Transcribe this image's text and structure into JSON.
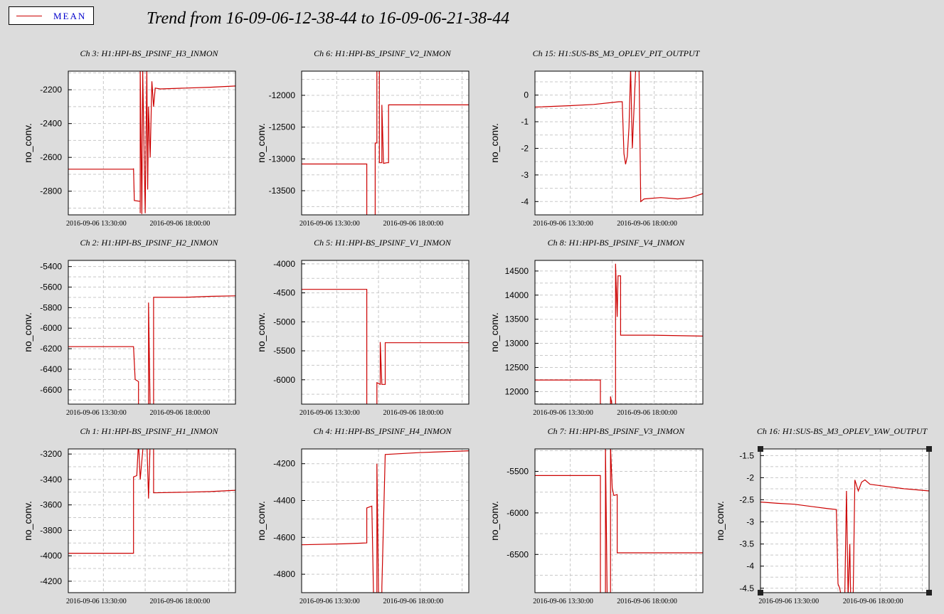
{
  "legend": {
    "label": "MEAN",
    "color": "#cc0000"
  },
  "title": "Trend from 16-09-06-12-38-44 to 16-09-06-21-38-44",
  "colors": {
    "line": "#cc0000",
    "grid": "#c8c8c8",
    "background": "#dcdcdc",
    "plot_bg": "#ffffff"
  },
  "chart_data": [
    {
      "type": "line",
      "title": "Ch 3: H1:HPI-BS_IPSINF_H3_INMON",
      "ylabel": "no_conv.",
      "x_ticks": [
        "2016-09-06 13:30:00",
        "2016-09-06 18:00:00"
      ],
      "yticks": [
        -2200,
        -2400,
        -2600,
        -2800
      ],
      "ylim": [
        -2940,
        -2090
      ],
      "series": [
        {
          "points": [
            [
              0,
              -2670
            ],
            [
              0.39,
              -2670
            ],
            [
              0.39,
              -2665
            ],
            [
              0.395,
              -2855
            ],
            [
              0.43,
              -2860
            ],
            [
              0.43,
              -2930
            ],
            [
              0.43,
              -2090
            ],
            [
              0.44,
              -2935
            ],
            [
              0.445,
              -2090
            ],
            [
              0.46,
              -2930
            ],
            [
              0.47,
              -2080
            ],
            [
              0.475,
              -2790
            ],
            [
              0.48,
              -2300
            ],
            [
              0.49,
              -2600
            ],
            [
              0.5,
              -2150
            ],
            [
              0.51,
              -2300
            ],
            [
              0.52,
              -2190
            ],
            [
              0.55,
              -2195
            ],
            [
              0.7,
              -2190
            ],
            [
              0.85,
              -2185
            ],
            [
              1,
              -2178
            ]
          ]
        }
      ]
    },
    {
      "type": "line",
      "title": "Ch 6: H1:HPI-BS_IPSINF_V2_INMON",
      "ylabel": "no_conv.",
      "x_ticks": [
        "2016-09-06 13:30:00",
        "2016-09-06 18:00:00"
      ],
      "yticks": [
        -12000,
        -12500,
        -13000,
        -13500
      ],
      "ylim": [
        -13880,
        -11620
      ],
      "series": [
        {
          "points": [
            [
              0,
              -13080
            ],
            [
              0.39,
              -13080
            ],
            [
              0.39,
              -13900
            ],
            [
              0.44,
              -13900
            ],
            [
              0.44,
              -12750
            ],
            [
              0.45,
              -12750
            ],
            [
              0.45,
              -11600
            ],
            [
              0.465,
              -11600
            ],
            [
              0.465,
              -13060
            ],
            [
              0.48,
              -13060
            ],
            [
              0.48,
              -12150
            ],
            [
              0.49,
              -13070
            ],
            [
              0.51,
              -13060
            ],
            [
              0.52,
              -13060
            ],
            [
              0.52,
              -12150
            ],
            [
              1,
              -12150
            ]
          ]
        }
      ]
    },
    {
      "type": "line",
      "title": "Ch 15: H1:SUS-BS_M3_OPLEV_PIT_OUTPUT",
      "ylabel": "no_conv.",
      "x_ticks": [
        "2016-09-06 13:30:00",
        "2016-09-06 18:00:00"
      ],
      "yticks": [
        0,
        -1,
        -2,
        -3,
        -4
      ],
      "ylim": [
        -4.5,
        0.9
      ],
      "series": [
        {
          "points": [
            [
              0,
              -0.45
            ],
            [
              0.2,
              -0.4
            ],
            [
              0.35,
              -0.35
            ],
            [
              0.5,
              -0.25
            ],
            [
              0.52,
              -0.25
            ],
            [
              0.53,
              -2.2
            ],
            [
              0.54,
              -2.6
            ],
            [
              0.55,
              -2.3
            ],
            [
              0.56,
              -1.2
            ],
            [
              0.57,
              1.0
            ],
            [
              0.58,
              -2.0
            ],
            [
              0.6,
              1.0
            ],
            [
              0.62,
              1.0
            ],
            [
              0.63,
              -4.0
            ],
            [
              0.65,
              -3.9
            ],
            [
              0.75,
              -3.85
            ],
            [
              0.85,
              -3.9
            ],
            [
              0.93,
              -3.85
            ],
            [
              1,
              -3.7
            ]
          ]
        }
      ]
    },
    {
      "type": "line",
      "title": "Ch 2: H1:HPI-BS_IPSINF_H2_INMON",
      "ylabel": "no_conv.",
      "x_ticks": [
        "2016-09-06 13:30:00",
        "2016-09-06 18:00:00"
      ],
      "yticks": [
        -5400,
        -5600,
        -5800,
        -6000,
        -6200,
        -6400,
        -6600
      ],
      "ylim": [
        -6740,
        -5340
      ],
      "series": [
        {
          "points": [
            [
              0,
              -6180
            ],
            [
              0.39,
              -6180
            ],
            [
              0.4,
              -6500
            ],
            [
              0.42,
              -6520
            ],
            [
              0.42,
              -6800
            ],
            [
              0.48,
              -6800
            ],
            [
              0.48,
              -5750
            ],
            [
              0.49,
              -6800
            ],
            [
              0.51,
              -6800
            ],
            [
              0.51,
              -5700
            ],
            [
              0.7,
              -5700
            ],
            [
              0.85,
              -5690
            ],
            [
              1,
              -5685
            ]
          ]
        }
      ]
    },
    {
      "type": "line",
      "title": "Ch 5: H1:HPI-BS_IPSINF_V1_INMON",
      "ylabel": "no_conv.",
      "x_ticks": [
        "2016-09-06 13:30:00",
        "2016-09-06 18:00:00"
      ],
      "yticks": [
        -4000,
        -4500,
        -5000,
        -5500,
        -6000
      ],
      "ylim": [
        -6420,
        -3940
      ],
      "series": [
        {
          "points": [
            [
              0,
              -4440
            ],
            [
              0.39,
              -4440
            ],
            [
              0.39,
              -6500
            ],
            [
              0.45,
              -6500
            ],
            [
              0.45,
              -6050
            ],
            [
              0.47,
              -6080
            ],
            [
              0.47,
              -5350
            ],
            [
              0.48,
              -6080
            ],
            [
              0.5,
              -6080
            ],
            [
              0.5,
              -5360
            ],
            [
              0.7,
              -5360
            ],
            [
              1,
              -5360
            ]
          ]
        }
      ]
    },
    {
      "type": "line",
      "title": "Ch 8: H1:HPI-BS_IPSINF_V4_INMON",
      "ylabel": "no_conv.",
      "x_ticks": [
        "2016-09-06 13:30:00",
        "2016-09-06 18:00:00"
      ],
      "yticks": [
        14500,
        14000,
        13500,
        13000,
        12500,
        12000
      ],
      "ylim": [
        11740,
        14720
      ],
      "series": [
        {
          "points": [
            [
              0,
              12240
            ],
            [
              0.39,
              12240
            ],
            [
              0.39,
              11700
            ],
            [
              0.45,
              11700
            ],
            [
              0.45,
              11900
            ],
            [
              0.46,
              11700
            ],
            [
              0.48,
              11700
            ],
            [
              0.48,
              14650
            ],
            [
              0.49,
              13550
            ],
            [
              0.495,
              14400
            ],
            [
              0.51,
              14400
            ],
            [
              0.51,
              13170
            ],
            [
              0.7,
              13170
            ],
            [
              1,
              13150
            ]
          ]
        }
      ]
    },
    {
      "type": "line",
      "title": "Ch 1: H1:HPI-BS_IPSINF_H1_INMON",
      "ylabel": "no_conv.",
      "x_ticks": [
        "2016-09-06 13:30:00",
        "2016-09-06 18:00:00"
      ],
      "yticks": [
        -3200,
        -3400,
        -3600,
        -3800,
        -4000,
        -4200
      ],
      "ylim": [
        -4290,
        -3160
      ],
      "series": [
        {
          "points": [
            [
              0,
              -3980
            ],
            [
              0.39,
              -3980
            ],
            [
              0.39,
              -3380
            ],
            [
              0.41,
              -3370
            ],
            [
              0.42,
              -3100
            ],
            [
              0.43,
              -3400
            ],
            [
              0.45,
              -3100
            ],
            [
              0.47,
              -3100
            ],
            [
              0.48,
              -3550
            ],
            [
              0.49,
              -3100
            ],
            [
              0.51,
              -3100
            ],
            [
              0.51,
              -3505
            ],
            [
              0.7,
              -3500
            ],
            [
              0.85,
              -3495
            ],
            [
              1,
              -3485
            ]
          ]
        }
      ]
    },
    {
      "type": "line",
      "title": "Ch 4: H1:HPI-BS_IPSINF_H4_INMON",
      "ylabel": "no_conv.",
      "x_ticks": [
        "2016-09-06 13:30:00",
        "2016-09-06 18:00:00"
      ],
      "yticks": [
        -4200,
        -4400,
        -4600,
        -4800
      ],
      "ylim": [
        -4900,
        -4120
      ],
      "series": [
        {
          "points": [
            [
              0,
              -4640
            ],
            [
              0.25,
              -4635
            ],
            [
              0.39,
              -4630
            ],
            [
              0.39,
              -4440
            ],
            [
              0.42,
              -4430
            ],
            [
              0.43,
              -4900
            ],
            [
              0.45,
              -4900
            ],
            [
              0.45,
              -4200
            ],
            [
              0.46,
              -4900
            ],
            [
              0.48,
              -4900
            ],
            [
              0.48,
              -4870
            ],
            [
              0.5,
              -4150
            ],
            [
              0.7,
              -4140
            ],
            [
              0.85,
              -4135
            ],
            [
              1,
              -4130
            ]
          ]
        }
      ]
    },
    {
      "type": "line",
      "title": "Ch 7: H1:HPI-BS_IPSINF_V3_INMON",
      "ylabel": "no_conv.",
      "x_ticks": [
        "2016-09-06 13:30:00",
        "2016-09-06 18:00:00"
      ],
      "yticks": [
        -5500,
        -6000,
        -6500
      ],
      "ylim": [
        -6960,
        -5230
      ],
      "series": [
        {
          "points": [
            [
              0,
              -5550
            ],
            [
              0.39,
              -5550
            ],
            [
              0.39,
              -7000
            ],
            [
              0.42,
              -7000
            ],
            [
              0.42,
              -5200
            ],
            [
              0.43,
              -7000
            ],
            [
              0.45,
              -7000
            ],
            [
              0.45,
              -5200
            ],
            [
              0.46,
              -5700
            ],
            [
              0.47,
              -5790
            ],
            [
              0.49,
              -5780
            ],
            [
              0.49,
              -6480
            ],
            [
              0.7,
              -6480
            ],
            [
              1,
              -6480
            ]
          ]
        }
      ]
    },
    {
      "type": "line",
      "title": "Ch 16: H1:SUS-BS_M3_OPLEV_YAW_OUTPUT",
      "ylabel": "no_conv.",
      "x_ticks": [
        "2016-09-06 13:30:00",
        "2016-09-06 18:00:00"
      ],
      "yticks": [
        -1.5,
        -2,
        -2.5,
        -3,
        -3.5,
        -4,
        -4.5
      ],
      "ylim": [
        -4.6,
        -1.35
      ],
      "series": [
        {
          "points": [
            [
              0,
              -2.55
            ],
            [
              0.1,
              -2.58
            ],
            [
              0.2,
              -2.6
            ],
            [
              0.3,
              -2.65
            ],
            [
              0.4,
              -2.7
            ],
            [
              0.45,
              -2.72
            ],
            [
              0.46,
              -4.4
            ],
            [
              0.47,
              -4.5
            ],
            [
              0.48,
              -4.7
            ],
            [
              0.5,
              -4.7
            ],
            [
              0.51,
              -2.3
            ],
            [
              0.52,
              -4.7
            ],
            [
              0.53,
              -3.5
            ],
            [
              0.535,
              -4.7
            ],
            [
              0.55,
              -4.7
            ],
            [
              0.56,
              -2.05
            ],
            [
              0.58,
              -2.3
            ],
            [
              0.6,
              -2.1
            ],
            [
              0.62,
              -2.05
            ],
            [
              0.65,
              -2.15
            ],
            [
              0.75,
              -2.2
            ],
            [
              0.85,
              -2.25
            ],
            [
              1,
              -2.3
            ]
          ]
        }
      ]
    }
  ]
}
